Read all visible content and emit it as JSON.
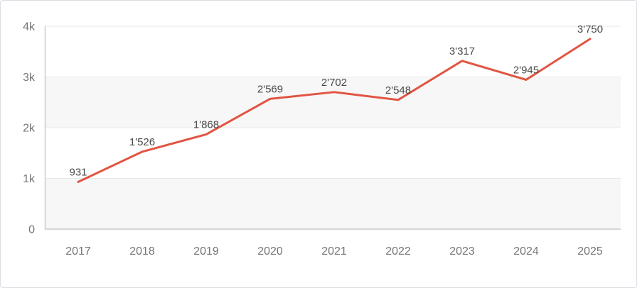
{
  "chart_data": {
    "type": "line",
    "title": "",
    "xlabel": "",
    "ylabel": "",
    "categories": [
      "2017",
      "2018",
      "2019",
      "2020",
      "2021",
      "2022",
      "2023",
      "2024",
      "2025"
    ],
    "series": [
      {
        "name": "values",
        "values": [
          931,
          1526,
          1868,
          2569,
          2702,
          2548,
          3317,
          2945,
          3750
        ],
        "labels": [
          "931",
          "1'526",
          "1'868",
          "2'569",
          "2'702",
          "2'548",
          "3'317",
          "2'945",
          "3'750"
        ]
      }
    ],
    "ylim": [
      0,
      4000
    ],
    "yticks": [
      {
        "value": 0,
        "label": "0"
      },
      {
        "value": 1000,
        "label": "1k"
      },
      {
        "value": 2000,
        "label": "2k"
      },
      {
        "value": 3000,
        "label": "3k"
      },
      {
        "value": 4000,
        "label": "4k"
      }
    ],
    "grid": true,
    "legend": "none",
    "colors": {
      "line": "#e25442",
      "band": "#f7f7f7",
      "gridline": "#e9e9e9",
      "axis_line": "#c9c9c9",
      "tick_label": "#757575",
      "data_label": "#4a4a4a",
      "card_border": "#d9dde3",
      "card_background": "#ffffff"
    }
  }
}
